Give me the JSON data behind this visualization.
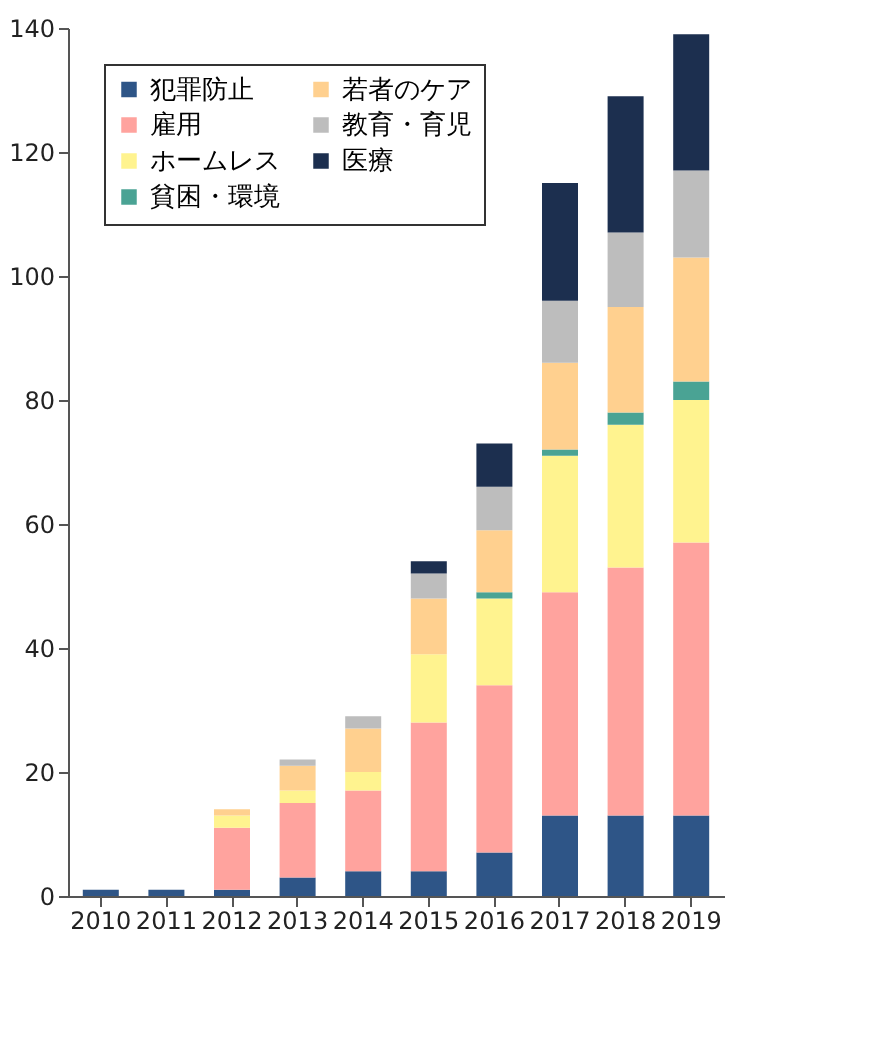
{
  "chart_data": {
    "type": "bar",
    "stacked": true,
    "categories": [
      "2010",
      "2011",
      "2012",
      "2013",
      "2014",
      "2015",
      "2016",
      "2017",
      "2018",
      "2019"
    ],
    "series": [
      {
        "name": "犯罪防止",
        "color": "#2e5587",
        "values": [
          1,
          1,
          1,
          3,
          4,
          4,
          7,
          13,
          13,
          13
        ]
      },
      {
        "name": "雇用",
        "color": "#ffa39e",
        "values": [
          0,
          0,
          10,
          12,
          13,
          24,
          27,
          36,
          40,
          44
        ]
      },
      {
        "name": "ホームレス",
        "color": "#fff38f",
        "values": [
          0,
          0,
          2,
          2,
          3,
          11,
          14,
          22,
          23,
          23
        ]
      },
      {
        "name": "貧困・環境",
        "color": "#4aa394",
        "values": [
          0,
          0,
          0,
          0,
          0,
          0,
          1,
          1,
          2,
          3
        ]
      },
      {
        "name": "若者のケア",
        "color": "#ffd08f",
        "values": [
          0,
          0,
          1,
          4,
          7,
          9,
          10,
          14,
          17,
          20
        ]
      },
      {
        "name": "教育・育児",
        "color": "#bdbdbd",
        "values": [
          0,
          0,
          0,
          1,
          2,
          4,
          7,
          10,
          12,
          14
        ]
      },
      {
        "name": "医療",
        "color": "#1c2f4f",
        "values": [
          0,
          0,
          0,
          0,
          0,
          2,
          7,
          19,
          22,
          22
        ]
      }
    ],
    "ylim": [
      0,
      140
    ],
    "yticks": [
      0,
      20,
      40,
      60,
      80,
      100,
      120,
      140
    ],
    "grid": false,
    "legend": "top left"
  }
}
